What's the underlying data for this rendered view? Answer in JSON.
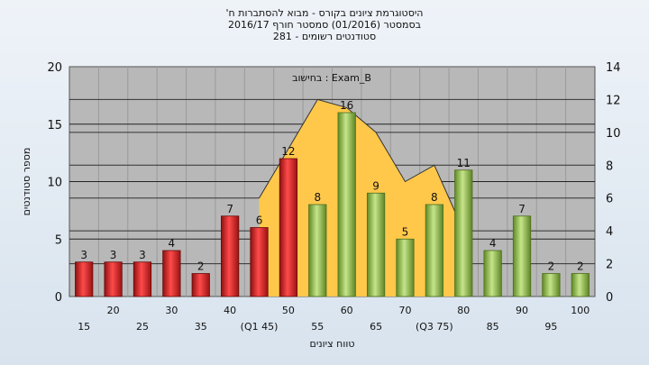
{
  "header": {
    "title_line1": "'היסטוגרמת ציונים בקורס - מבוא להסתברות ח",
    "title_line2": "בסמסטר (01/2016) סמסטר חורף 2016/17",
    "title_line3": "סטודנטים רשומים - 281"
  },
  "chart_data": {
    "type": "bar",
    "annotation": "בחישוב : Exam_B",
    "xlabel": "טווח ציונים",
    "ylabel": "מספר סטודנטים",
    "ylim": [
      0,
      20
    ],
    "y_ticks": [
      0,
      5,
      10,
      15,
      20
    ],
    "y2lim": [
      0,
      14
    ],
    "y2_ticks": [
      0,
      2,
      4,
      6,
      8,
      10,
      12,
      14
    ],
    "grid": true,
    "categories": [
      "15",
      "20",
      "25",
      "30",
      "35",
      "40",
      "(Q1 45)",
      "50",
      "55",
      "60",
      "65",
      "70",
      "(Q3 75)",
      "80",
      "85",
      "90",
      "95",
      "100"
    ],
    "values": [
      3,
      3,
      3,
      4,
      2,
      7,
      6,
      12,
      8,
      16,
      9,
      5,
      8,
      11,
      4,
      7,
      2,
      2
    ],
    "bar_colors": [
      "red",
      "red",
      "red",
      "red",
      "red",
      "red",
      "red",
      "red",
      "green",
      "green",
      "green",
      "green",
      "green",
      "green",
      "green",
      "green",
      "green",
      "green"
    ],
    "distribution_overlay": {
      "color": "#ffc84a",
      "x": [
        "(Q1 45)",
        "50",
        "55",
        "60",
        "65",
        "70",
        "(Q3 75)",
        "80"
      ],
      "y2": [
        6,
        9,
        12,
        11.5,
        10,
        7,
        8,
        4
      ]
    },
    "colors": {
      "red": "#d42a2a",
      "green": "#8ebc48",
      "plot_bg": "#b8b8b8"
    }
  }
}
